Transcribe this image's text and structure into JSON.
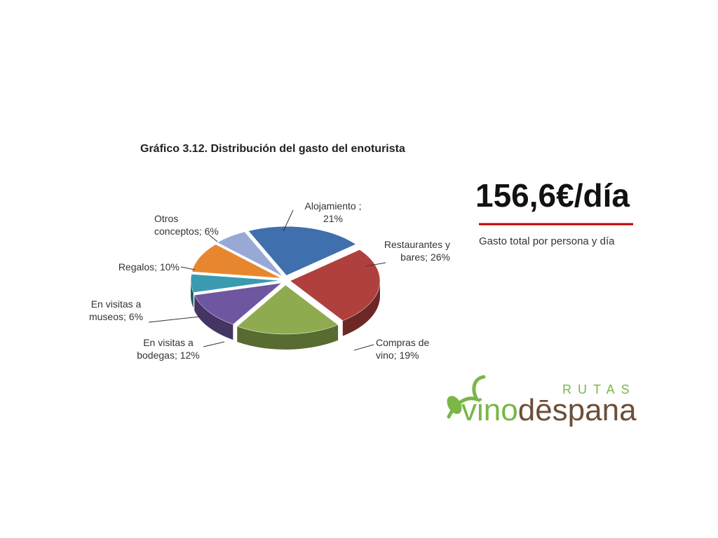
{
  "chart_data": {
    "type": "pie",
    "title": "Gráfico 3.12. Distribución del gasto del enoturista",
    "categories": [
      "Alojamiento ;",
      "Restaurantes y bares;",
      "Compras de vino;",
      "En visitas a bodegas;",
      "En visitas a museos;",
      "Regalos;",
      "Otros conceptos;"
    ],
    "values": [
      21,
      26,
      19,
      12,
      6,
      10,
      6
    ],
    "value_labels": [
      "21%",
      "26%",
      "19%",
      "12%",
      "6%",
      "10%",
      "6%"
    ],
    "colors": [
      "#3f6fad",
      "#b0403e",
      "#8eac4f",
      "#6e56a0",
      "#3b9ab0",
      "#e8862f",
      "#98a9d6"
    ]
  },
  "highlight": {
    "amount": "156,6€/día",
    "caption": "Gasto total por persona y día"
  },
  "logo": {
    "top": "RUTAS",
    "first": "vino",
    "second": "dēspana"
  }
}
